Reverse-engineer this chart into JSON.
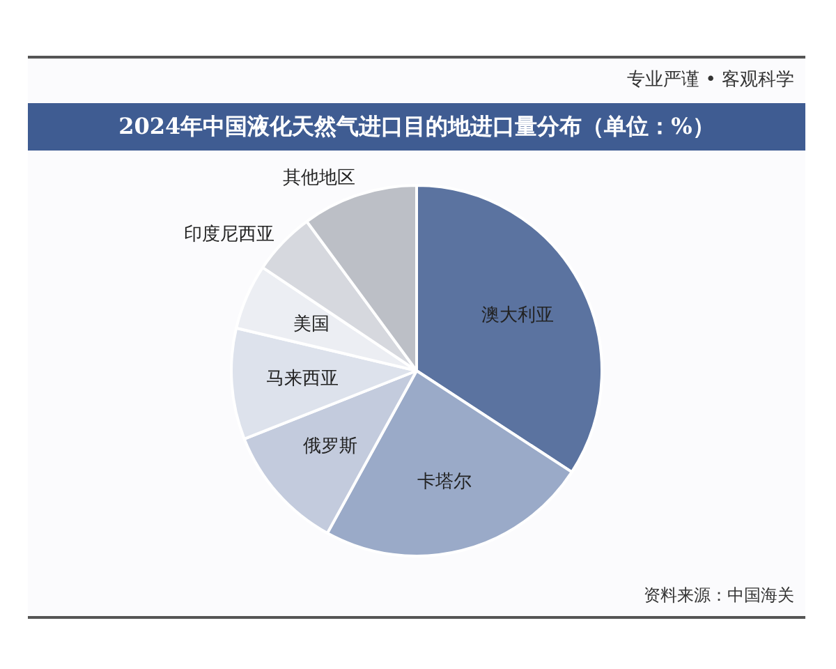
{
  "chart_data": {
    "type": "pie",
    "title": "2024年中国液化天然气进口目的地进口量分布（单位：%）",
    "categories": [
      "澳大利亚",
      "卡塔尔",
      "俄罗斯",
      "马来西亚",
      "美国",
      "印度尼西亚",
      "其他地区"
    ],
    "values": [
      34.2,
      23.8,
      11.0,
      9.7,
      5.7,
      5.5,
      10.1
    ],
    "colors": [
      "#5b73a0",
      "#9aaac8",
      "#c3cbdd",
      "#dde2ec",
      "#eceef3",
      "#d6d8de",
      "#bcbfc6"
    ],
    "legend": false,
    "annotations": [
      "专业严谨 • 客观科学",
      "资料来源：中国海关"
    ]
  }
}
